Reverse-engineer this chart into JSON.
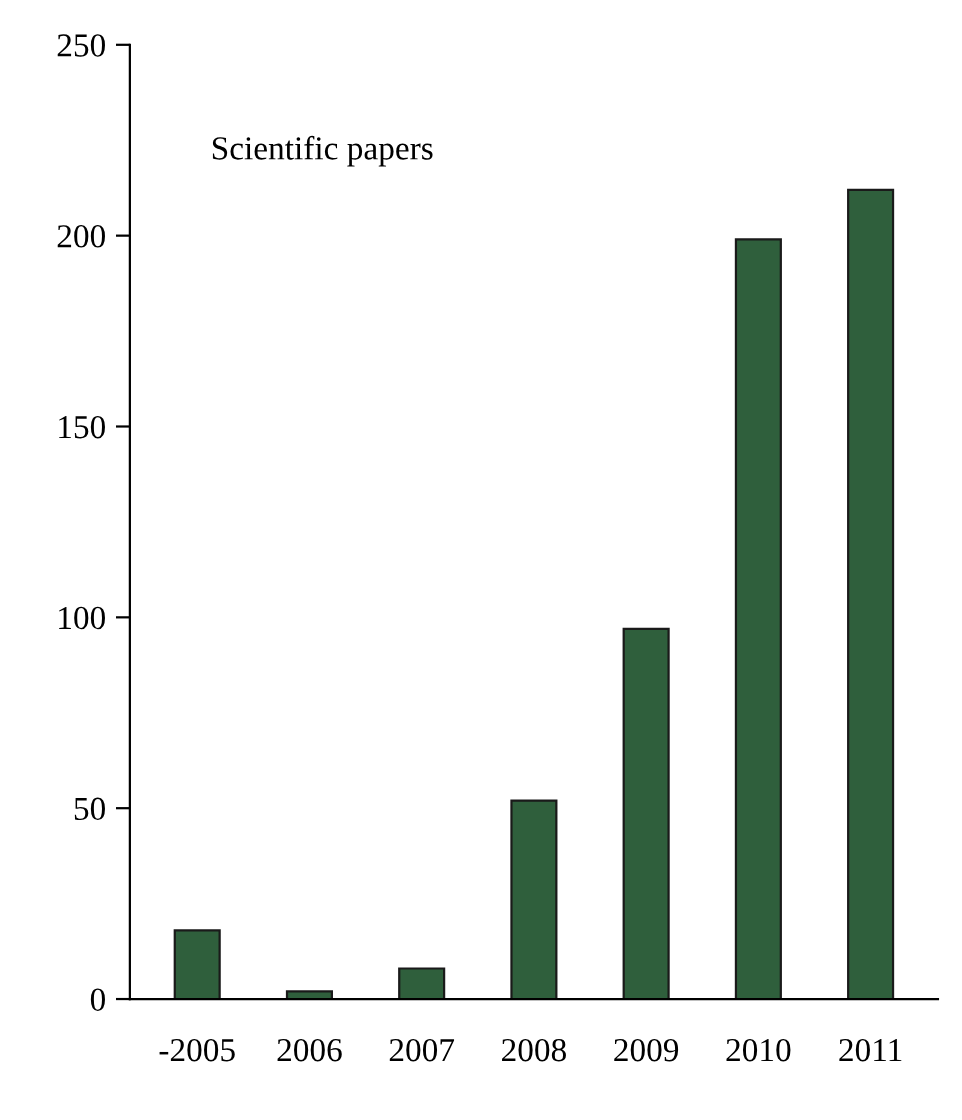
{
  "chart_data": {
    "type": "bar",
    "categories": [
      "-2005",
      "2006",
      "2007",
      "2008",
      "2009",
      "2010",
      "2011"
    ],
    "values": [
      18,
      2,
      8,
      52,
      97,
      199,
      212
    ],
    "color": "#2f5f3c",
    "ylim": [
      0,
      250
    ],
    "yticks": [
      0,
      50,
      100,
      150,
      200,
      250
    ],
    "annotations": [
      "Scientific papers"
    ],
    "grid": false,
    "legend": false
  }
}
